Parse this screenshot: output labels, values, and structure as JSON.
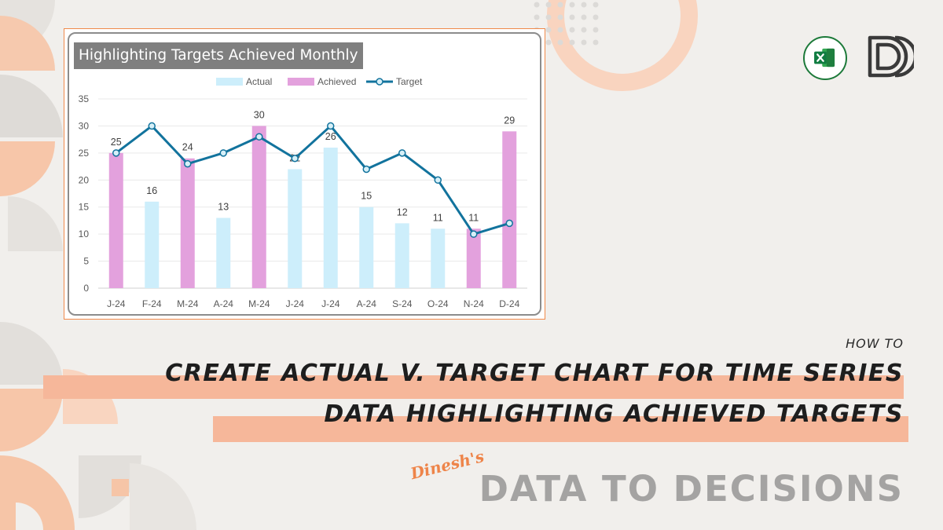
{
  "page": {
    "how_to": "HOW TO",
    "headline_line1": "CREATE ACTUAL V. TARGET CHART FOR TIME SERIES",
    "headline_line2": "DATA HIGHLIGHTING ACHIEVED TARGETS",
    "author_script": "Dinesh's",
    "brand_title": "DATA TO DECISIONS",
    "logos": [
      "excel-logo-icon",
      "d2d-logo-icon"
    ]
  },
  "colors": {
    "actual": "#cdeefb",
    "achieved": "#e3a1dd",
    "target": "#12739d",
    "highlight": "#f6b79a",
    "accent": "#ee8449"
  },
  "chart_data": {
    "type": "bar",
    "title": "Highlighting Targets Achieved Monthly",
    "categories": [
      "J-24",
      "F-24",
      "M-24",
      "A-24",
      "M-24",
      "J-24",
      "J-24",
      "A-24",
      "S-24",
      "O-24",
      "N-24",
      "D-24"
    ],
    "series": [
      {
        "name": "Actual",
        "type": "bar",
        "values": [
          null,
          16,
          null,
          13,
          null,
          22,
          26,
          15,
          12,
          11,
          null,
          null
        ]
      },
      {
        "name": "Achieved",
        "type": "bar",
        "values": [
          25,
          null,
          24,
          null,
          30,
          null,
          null,
          null,
          null,
          null,
          11,
          29
        ]
      },
      {
        "name": "Target",
        "type": "line",
        "values": [
          25,
          30,
          23,
          25,
          28,
          24,
          30,
          22,
          25,
          20,
          10,
          12
        ]
      }
    ],
    "data_labels": [
      25,
      16,
      24,
      13,
      30,
      22,
      26,
      15,
      12,
      11,
      11,
      29
    ],
    "ylim": [
      0,
      35
    ],
    "yticks": [
      0,
      5,
      10,
      15,
      20,
      25,
      30,
      35
    ],
    "legend": "top",
    "grid": true
  }
}
